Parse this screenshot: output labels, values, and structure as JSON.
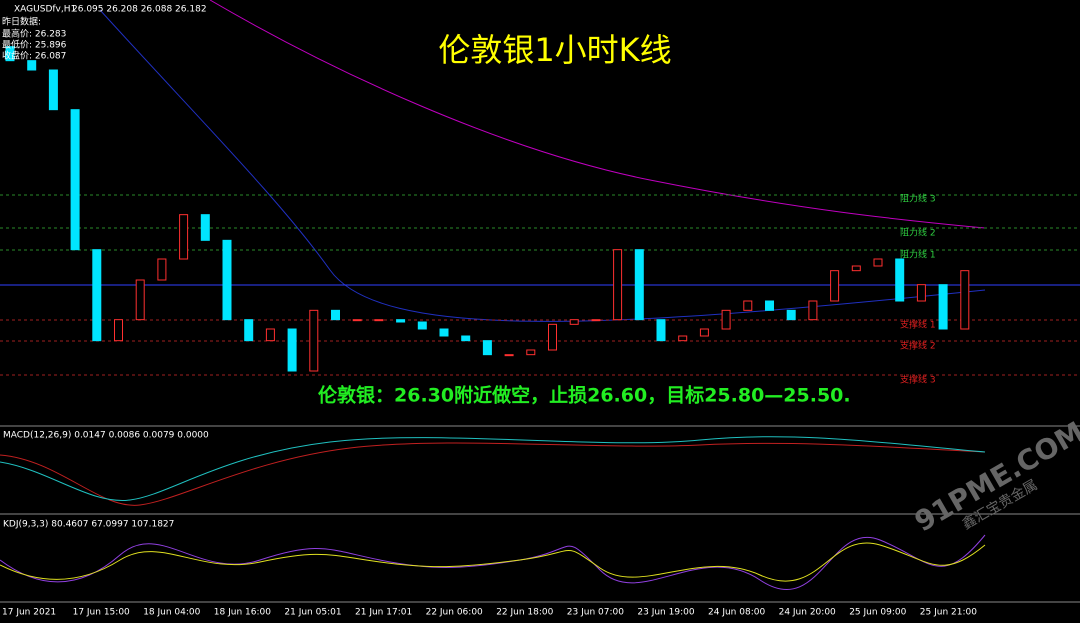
{
  "header": {
    "symbol": "XAGUSDfv,H1",
    "ohlc": "26.095 26.208 26.088 26.182"
  },
  "info_lines": [
    "昨日数据:",
    "最高价: 26.283",
    "最低价: 25.896",
    "收盘价: 26.087"
  ],
  "title": "伦敦银1小时K线",
  "analysis": "伦敦银：26.30附近做空，止损26.60，目标25.80—25.50.",
  "levels": [
    "阻力线 3",
    "阻力线 2",
    "阻力线 1",
    "支撑线 1",
    "支撑线 2",
    "支撑线 3"
  ],
  "macd_label": "MACD(12,26,9) 0.0147 0.0086 0.0079 0.0000",
  "kdj_label": "KDJ(9,3,3) 80.4607 67.0997 107.1827",
  "x_labels": [
    "17 Jun 2021",
    "17 Jun 15:00",
    "18 Jun 04:00",
    "18 Jun 16:00",
    "21 Jun 05:01",
    "21 Jun 17:01",
    "22 Jun 06:00",
    "22 Jun 18:00",
    "23 Jun 07:00",
    "23 Jun 19:00",
    "24 Jun 08:00",
    "24 Jun 20:00",
    "25 Jun 09:00",
    "25 Jun 21:00"
  ],
  "watermark": "91PME.COM",
  "watermark_sub": "鑫汇宝贵金属",
  "chart_data": {
    "type": "candlestick",
    "ylim": [
      25.5,
      27.3
    ],
    "open": [
      27.1,
      27.04,
      27.0,
      26.83,
      26.23,
      25.84,
      25.93,
      26.1,
      26.19,
      26.38,
      26.27,
      25.93,
      25.84,
      25.89,
      25.71,
      25.97,
      25.93,
      25.93,
      25.93,
      25.92,
      25.89,
      25.86,
      25.84,
      25.78,
      25.78,
      25.8,
      25.91,
      25.93,
      25.93,
      26.23,
      25.93,
      25.84,
      25.86,
      25.89,
      25.97,
      26.01,
      25.97,
      25.93,
      26.01,
      26.14,
      26.16,
      26.19,
      26.01,
      26.08,
      25.89
    ],
    "close": [
      27.04,
      27.0,
      26.83,
      26.23,
      25.84,
      25.93,
      26.1,
      26.19,
      26.38,
      26.27,
      25.93,
      25.84,
      25.89,
      25.71,
      25.97,
      25.93,
      25.93,
      25.93,
      25.92,
      25.89,
      25.86,
      25.84,
      25.78,
      25.78,
      25.8,
      25.91,
      25.93,
      25.93,
      26.23,
      25.93,
      25.84,
      25.86,
      25.89,
      25.97,
      26.01,
      25.97,
      25.93,
      26.01,
      26.14,
      26.16,
      26.19,
      26.01,
      26.08,
      25.89,
      26.14
    ]
  }
}
